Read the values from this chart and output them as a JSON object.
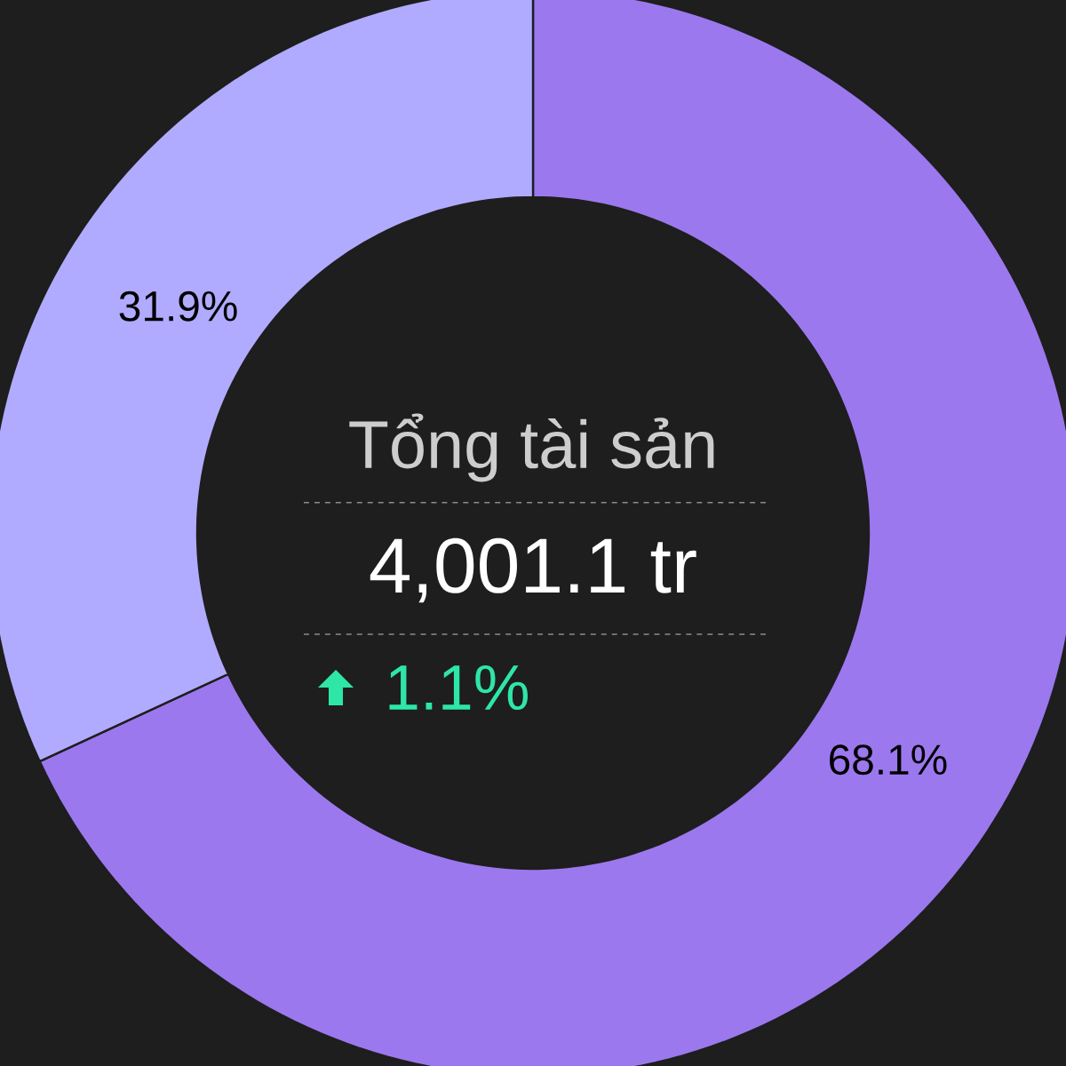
{
  "chart_data": {
    "type": "donut",
    "title": "Tổng tài sản",
    "subtitle": "4,001.1 tr",
    "annotations": [
      "1.1%"
    ],
    "categories": [
      null,
      null
    ],
    "values": [
      68.1,
      31.9
    ],
    "colors": [
      "#9c78ee",
      "#b0abff"
    ],
    "value_labels": [
      "68.1%",
      "31.9%"
    ]
  }
}
